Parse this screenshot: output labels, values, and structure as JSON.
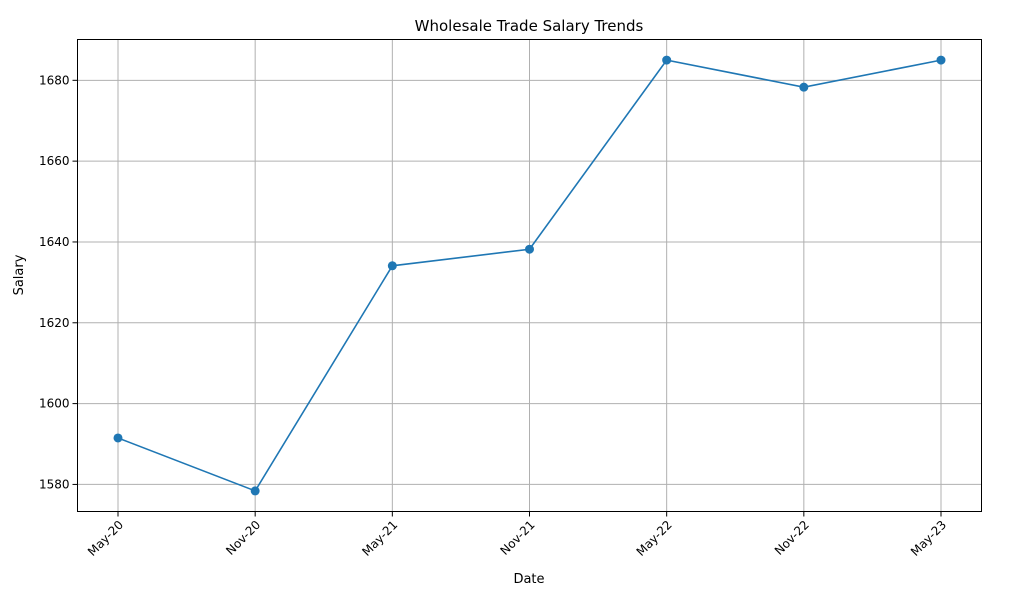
{
  "chart_data": {
    "type": "line",
    "title": "Wholesale Trade Salary Trends",
    "xlabel": "Date",
    "ylabel": "Salary",
    "categories": [
      "May-20",
      "Nov-20",
      "May-21",
      "Nov-21",
      "May-22",
      "Nov-22",
      "May-23"
    ],
    "series": [
      {
        "values": [
          1591.5,
          1578.4,
          1634.1,
          1638.2,
          1685.0,
          1678.3,
          1685.0
        ],
        "color": "#1f77b4"
      }
    ],
    "ylim": [
      1573.3,
      1690.1
    ],
    "yticks": [
      1580,
      1600,
      1620,
      1640,
      1660,
      1680
    ],
    "grid": true,
    "marker": "circle"
  }
}
